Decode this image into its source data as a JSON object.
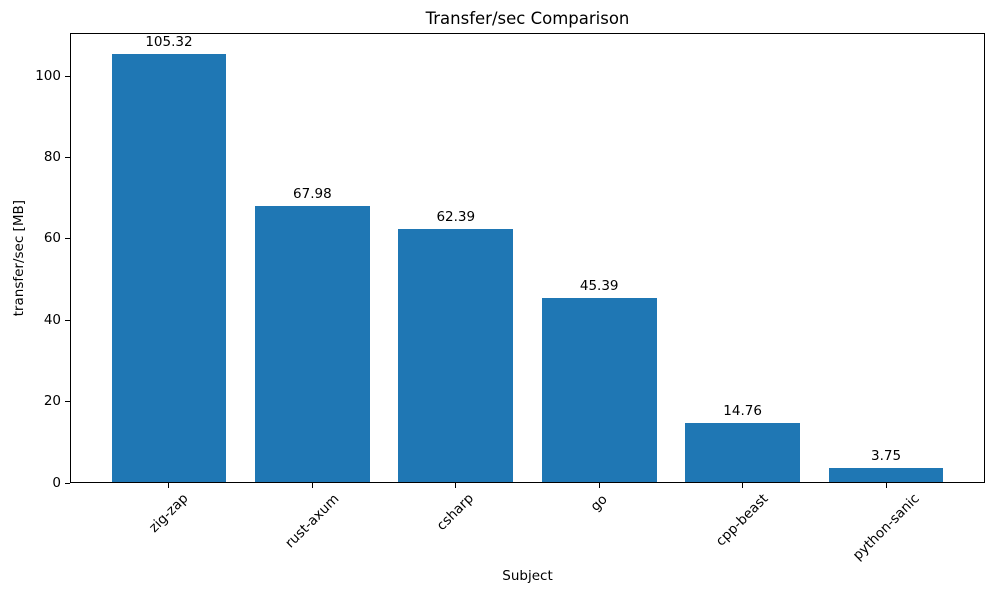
{
  "chart_data": {
    "type": "bar",
    "title": "Transfer/sec Comparison",
    "xlabel": "Subject",
    "ylabel": "transfer/sec [MB]",
    "categories": [
      "zig-zap",
      "rust-axum",
      "csharp",
      "go",
      "cpp-beast",
      "python-sanic"
    ],
    "values": [
      105.32,
      67.98,
      62.39,
      45.39,
      14.76,
      3.75
    ],
    "value_labels": [
      "105.32",
      "67.98",
      "62.39",
      "45.39",
      "14.76",
      "3.75"
    ],
    "yticks": [
      0,
      20,
      40,
      60,
      80,
      100
    ],
    "ylim": [
      0,
      110.59
    ],
    "bar_color": "#1f77b4",
    "axis_color": "#000000",
    "grid": false,
    "legend": null,
    "x_tick_label_rotation_deg": 45
  }
}
